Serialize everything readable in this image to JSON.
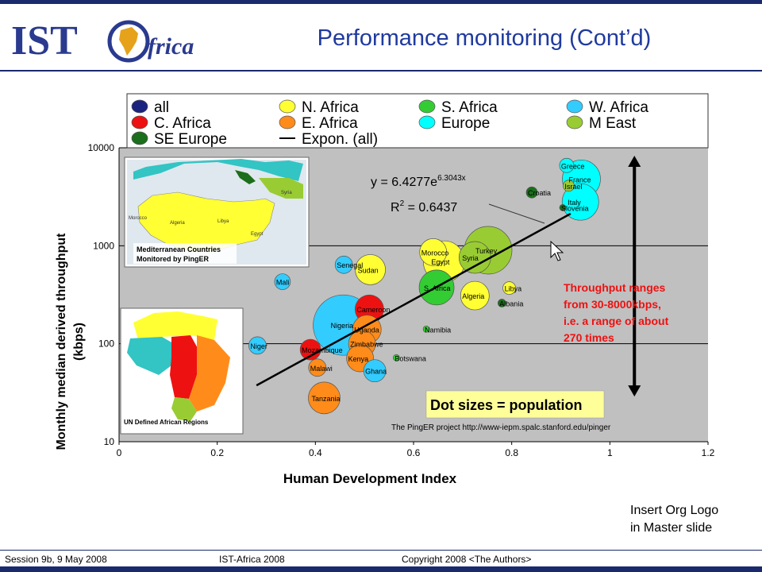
{
  "logo": {
    "text": "IST",
    "subtext": "frica"
  },
  "slide": {
    "title": "Performance monitoring (Cont’d)"
  },
  "note": {
    "line1": "Insert Org Logo",
    "line2": "in Master slide"
  },
  "footer": {
    "session": "Session 9b, 9 May 2008",
    "event": "IST-Africa 2008",
    "copyright": "Copyright 2008 <The Authors>"
  },
  "chart_data": {
    "type": "scatter",
    "xlabel": "Human Development Index",
    "ylabel": "Monthly median derived throughput (kbps)",
    "xlim": [
      0,
      1.2
    ],
    "ylim": [
      10,
      10000
    ],
    "yscale": "log",
    "x_ticks": [
      "0",
      "0.2",
      "0.4",
      "0.6",
      "0.8",
      "1",
      "1.2"
    ],
    "y_ticks": [
      "10",
      "100",
      "1000",
      "10000"
    ],
    "grid": true,
    "legend_position": "top",
    "legend": [
      {
        "label": "all",
        "color": "#1a237e"
      },
      {
        "label": "N. Africa",
        "color": "#ffff33"
      },
      {
        "label": "S. Africa",
        "color": "#33cc33"
      },
      {
        "label": "W. Africa",
        "color": "#33ccff"
      },
      {
        "label": "C. Africa",
        "color": "#ee1111"
      },
      {
        "label": "E. Africa",
        "color": "#ff8c1a"
      },
      {
        "label": "Europe",
        "color": "#00ffff"
      },
      {
        "label": "M East",
        "color": "#99cc33"
      },
      {
        "label": "SE Europe",
        "color": "#1b6e1b"
      },
      {
        "label": "Expon. (all)",
        "color": "#000000"
      }
    ],
    "equation": "y = 6.4277e",
    "equation_exp": "6.3043x",
    "r2_label": "R",
    "r2_value": " = 0.6437",
    "trendline": {
      "x_start": 0.28,
      "x_end": 0.92
    },
    "range_text": [
      "Throughput ranges",
      "from 30-8000kbps,",
      "i.e. a range of about",
      "270 times"
    ],
    "range_span": [
      30,
      8000
    ],
    "dot_size_note": "Dot sizes = population",
    "source_note": "The PingER project http://www-iepm.spalc.stanford.edu/pinger",
    "inset_maps": [
      {
        "caption_lines": [
          "Mediterranean Countries",
          "Monitored by PingER"
        ],
        "labels": [
          "Morocco",
          "Algeria",
          "Libya",
          "Egypt",
          "Syria"
        ]
      },
      {
        "caption_lines": [
          "UN Defined African Regions"
        ],
        "labels": []
      }
    ],
    "points": [
      {
        "label": "Greece",
        "x": 0.912,
        "y": 6600,
        "size": 9,
        "group": "Europe"
      },
      {
        "label": "France",
        "x": 0.942,
        "y": 4800,
        "size": 24,
        "group": "Europe"
      },
      {
        "label": "Israel",
        "x": 0.916,
        "y": 4100,
        "size": 7,
        "group": "M East"
      },
      {
        "label": "Croatia",
        "x": 0.841,
        "y": 3500,
        "size": 7,
        "group": "SE Europe"
      },
      {
        "label": "Italy",
        "x": 0.94,
        "y": 2800,
        "size": 23,
        "group": "Europe"
      },
      {
        "label": "Slovenia",
        "x": 0.904,
        "y": 2450,
        "size": 4,
        "group": "SE Europe"
      },
      {
        "label": "Turkey",
        "x": 0.752,
        "y": 900,
        "size": 30,
        "group": "M East"
      },
      {
        "label": "Morocco",
        "x": 0.64,
        "y": 860,
        "size": 17,
        "group": "N. Africa"
      },
      {
        "label": "Syria",
        "x": 0.725,
        "y": 760,
        "size": 20,
        "group": "M East"
      },
      {
        "label": "Egypt",
        "x": 0.662,
        "y": 690,
        "size": 26,
        "group": "N. Africa"
      },
      {
        "label": "Senegal",
        "x": 0.458,
        "y": 640,
        "size": 11,
        "group": "W. Africa"
      },
      {
        "label": "Sudan",
        "x": 0.512,
        "y": 570,
        "size": 19,
        "group": "N. Africa"
      },
      {
        "label": "Mali",
        "x": 0.333,
        "y": 430,
        "size": 10,
        "group": "W. Africa"
      },
      {
        "label": "S. Africa",
        "x": 0.647,
        "y": 375,
        "size": 22,
        "group": "S. Africa"
      },
      {
        "label": "Libya",
        "x": 0.795,
        "y": 370,
        "size": 8,
        "group": "N. Africa"
      },
      {
        "label": "Algeria",
        "x": 0.725,
        "y": 310,
        "size": 18,
        "group": "N. Africa"
      },
      {
        "label": "Albania",
        "x": 0.78,
        "y": 260,
        "size": 5,
        "group": "SE Europe"
      },
      {
        "label": "Cameroon",
        "x": 0.51,
        "y": 225,
        "size": 18,
        "group": "C. Africa"
      },
      {
        "label": "Nigeria",
        "x": 0.457,
        "y": 155,
        "size": 38,
        "group": "W. Africa"
      },
      {
        "label": "Uganda",
        "x": 0.505,
        "y": 140,
        "size": 18,
        "group": "E. Africa"
      },
      {
        "label": "Namibia",
        "x": 0.626,
        "y": 141,
        "size": 4,
        "group": "S. Africa"
      },
      {
        "label": "Zimbabwe",
        "x": 0.495,
        "y": 100,
        "size": 17,
        "group": "E. Africa"
      },
      {
        "label": "Niger",
        "x": 0.282,
        "y": 96,
        "size": 11,
        "group": "W. Africa"
      },
      {
        "label": "Mozambique",
        "x": 0.39,
        "y": 87,
        "size": 13,
        "group": "C. Africa"
      },
      {
        "label": "Kenya",
        "x": 0.491,
        "y": 71,
        "size": 17,
        "group": "E. Africa"
      },
      {
        "label": "Botswana",
        "x": 0.565,
        "y": 72,
        "size": 4,
        "group": "S. Africa"
      },
      {
        "label": "Malawi",
        "x": 0.404,
        "y": 57,
        "size": 11,
        "group": "E. Africa"
      },
      {
        "label": "Ghana",
        "x": 0.521,
        "y": 53,
        "size": 14,
        "group": "W. Africa"
      },
      {
        "label": "Tanzania",
        "x": 0.418,
        "y": 28,
        "size": 20,
        "group": "E. Africa"
      }
    ]
  }
}
